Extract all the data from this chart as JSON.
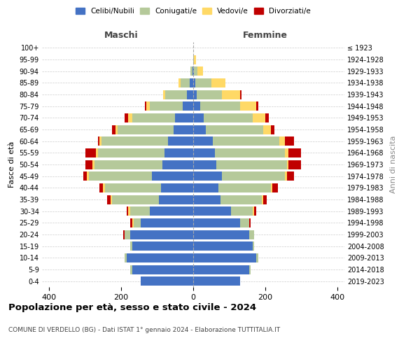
{
  "age_groups": [
    "0-4",
    "5-9",
    "10-14",
    "15-19",
    "20-24",
    "25-29",
    "30-34",
    "35-39",
    "40-44",
    "45-49",
    "50-54",
    "55-59",
    "60-64",
    "65-69",
    "70-74",
    "75-79",
    "80-84",
    "85-89",
    "90-94",
    "95-99",
    "100+"
  ],
  "birth_years": [
    "2019-2023",
    "2014-2018",
    "2009-2013",
    "2004-2008",
    "1999-2003",
    "1994-1998",
    "1989-1993",
    "1984-1988",
    "1979-1983",
    "1974-1978",
    "1969-1973",
    "1964-1968",
    "1959-1963",
    "1954-1958",
    "1949-1953",
    "1944-1948",
    "1939-1943",
    "1934-1938",
    "1929-1933",
    "1924-1928",
    "≤ 1923"
  ],
  "maschi": {
    "celibi": [
      145,
      170,
      185,
      170,
      175,
      145,
      120,
      95,
      90,
      115,
      85,
      80,
      70,
      55,
      50,
      30,
      18,
      10,
      2,
      0,
      0
    ],
    "coniugati": [
      0,
      5,
      5,
      5,
      15,
      20,
      55,
      130,
      155,
      175,
      190,
      185,
      185,
      155,
      120,
      90,
      60,
      25,
      5,
      0,
      0
    ],
    "vedovi": [
      0,
      0,
      0,
      0,
      0,
      5,
      5,
      5,
      5,
      5,
      5,
      5,
      5,
      5,
      10,
      10,
      5,
      5,
      0,
      0,
      0
    ],
    "divorziati": [
      0,
      0,
      0,
      0,
      5,
      5,
      5,
      10,
      10,
      10,
      20,
      30,
      5,
      10,
      10,
      5,
      0,
      0,
      0,
      0,
      0
    ]
  },
  "femmine": {
    "nubili": [
      130,
      155,
      175,
      165,
      155,
      130,
      105,
      75,
      70,
      80,
      65,
      60,
      55,
      35,
      30,
      20,
      10,
      5,
      2,
      0,
      0
    ],
    "coniugate": [
      0,
      5,
      5,
      5,
      15,
      25,
      60,
      115,
      145,
      175,
      195,
      195,
      185,
      160,
      135,
      110,
      70,
      45,
      10,
      2,
      0
    ],
    "vedove": [
      0,
      0,
      0,
      0,
      0,
      0,
      5,
      5,
      5,
      5,
      5,
      10,
      15,
      20,
      35,
      45,
      50,
      40,
      15,
      5,
      0
    ],
    "divorziate": [
      0,
      0,
      0,
      0,
      0,
      5,
      5,
      10,
      15,
      20,
      35,
      35,
      25,
      10,
      10,
      5,
      5,
      0,
      0,
      0,
      0
    ]
  },
  "colors": {
    "celibi": "#4472c4",
    "coniugati": "#b5c99a",
    "vedovi": "#ffd966",
    "divorziati": "#c00000"
  },
  "xlim": 420,
  "title": "Popolazione per età, sesso e stato civile - 2024",
  "subtitle": "COMUNE DI VERDELLO (BG) - Dati ISTAT 1° gennaio 2024 - Elaborazione TUTTITALIA.IT",
  "ylabel": "Fasce di età",
  "right_ylabel": "Anni di nascita",
  "maschi_label": "Maschi",
  "femmine_label": "Femmine",
  "legend_labels": [
    "Celibi/Nubili",
    "Coniugati/e",
    "Vedovi/e",
    "Divorziati/e"
  ]
}
